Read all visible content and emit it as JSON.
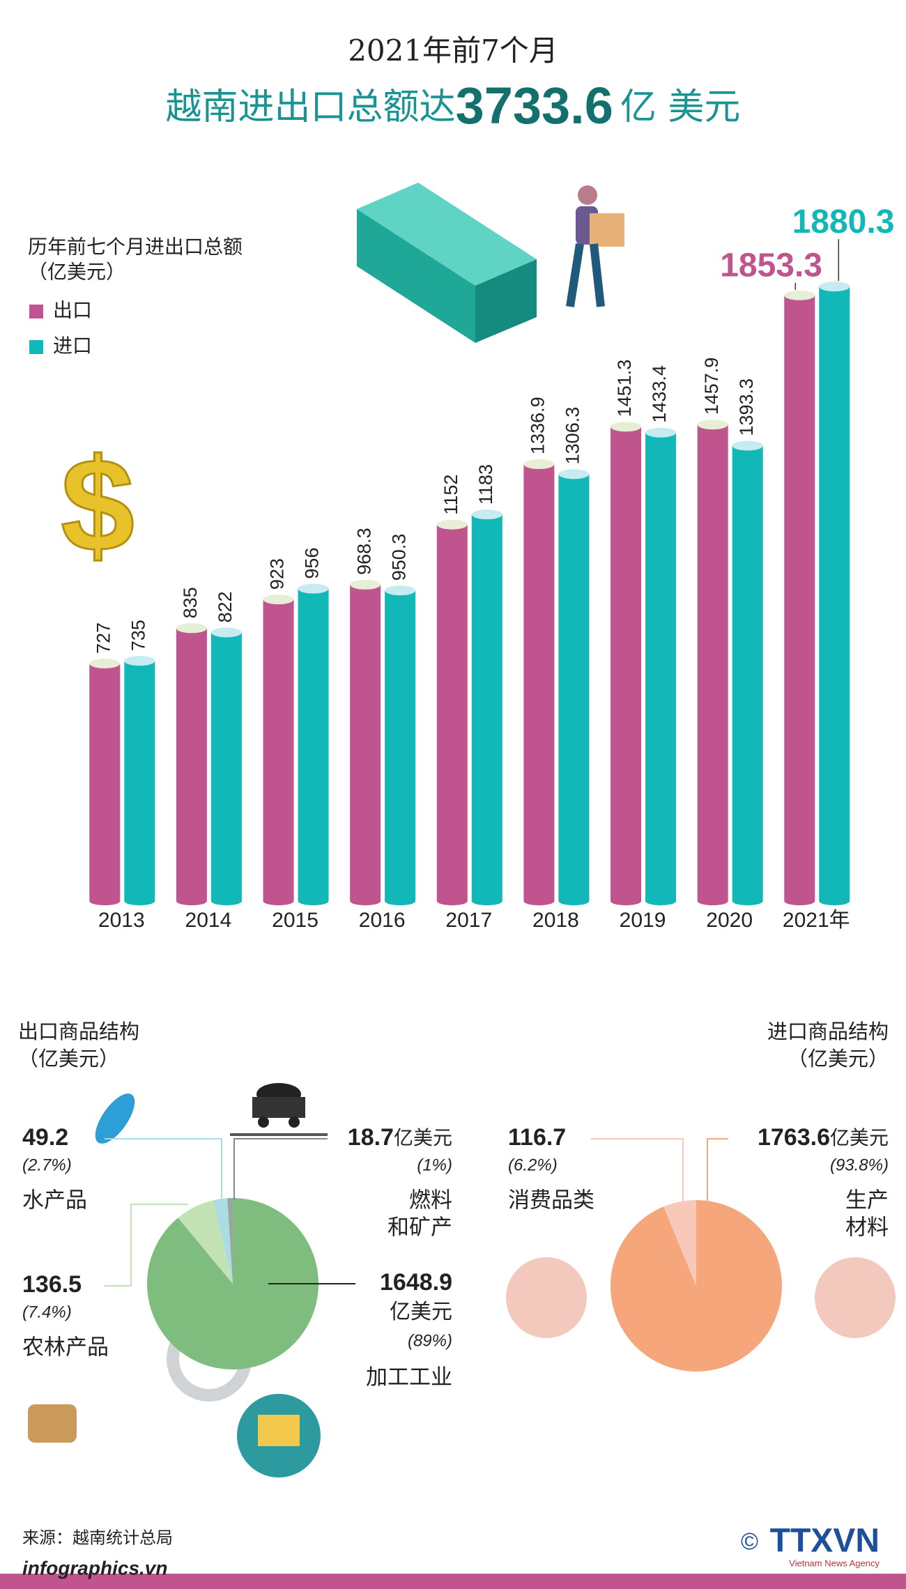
{
  "title": "2021年前7个月",
  "headline": {
    "lead": "越南进出口总额达",
    "total": "3733.6",
    "unit": "亿 美元"
  },
  "chart_data": [
    {
      "type": "bar",
      "title": "历年前七个月进出口总额",
      "subtitle": "（亿美元）",
      "categories": [
        "2013",
        "2014",
        "2015",
        "2016",
        "2017",
        "2018",
        "2019",
        "2020",
        "2021年"
      ],
      "series": [
        {
          "name": "出口",
          "color": "#c0548f",
          "cap": "#e6eed6",
          "values": [
            727,
            835,
            923,
            968.3,
            1152,
            1336.9,
            1451.3,
            1457.9,
            1853.3
          ]
        },
        {
          "name": "进口",
          "color": "#12b8b8",
          "cap": "#c6ecf2",
          "values": [
            735,
            822,
            956,
            950.3,
            1183,
            1306.3,
            1433.4,
            1393.3,
            1880.3
          ]
        }
      ],
      "ylim": [
        0,
        2000
      ]
    },
    {
      "type": "pie",
      "title": "出口商品结构",
      "subtitle": "（亿美元）",
      "unit": "亿美元",
      "categories": [
        [
          "水产品"
        ],
        [
          "燃料",
          "和矿产"
        ],
        [
          "农林产品"
        ],
        [
          "加工工业"
        ]
      ],
      "values": [
        49.2,
        18.7,
        136.5,
        1648.9
      ],
      "shares": [
        "(2.7%)",
        "(1%)",
        "(7.4%)",
        "(89%)"
      ],
      "colors": [
        "#a9dde2",
        "#9aa5a0",
        "#c3e2b4",
        "#7fbd7f"
      ]
    },
    {
      "type": "pie",
      "title": "进口商品结构",
      "subtitle": "（亿美元）",
      "unit": "亿美元",
      "categories": [
        [
          "消费品类"
        ],
        [
          "生产",
          "材料"
        ]
      ],
      "values": [
        116.7,
        1763.6
      ],
      "shares": [
        "(6.2%)",
        "(93.8%)"
      ],
      "colors": [
        "#f8c9b9",
        "#f5a67a"
      ]
    }
  ],
  "source": "来源：越南统计总局",
  "site": "infographics.vn",
  "logo": "TTXVN",
  "logo_sub": "Vietnam News Agency"
}
